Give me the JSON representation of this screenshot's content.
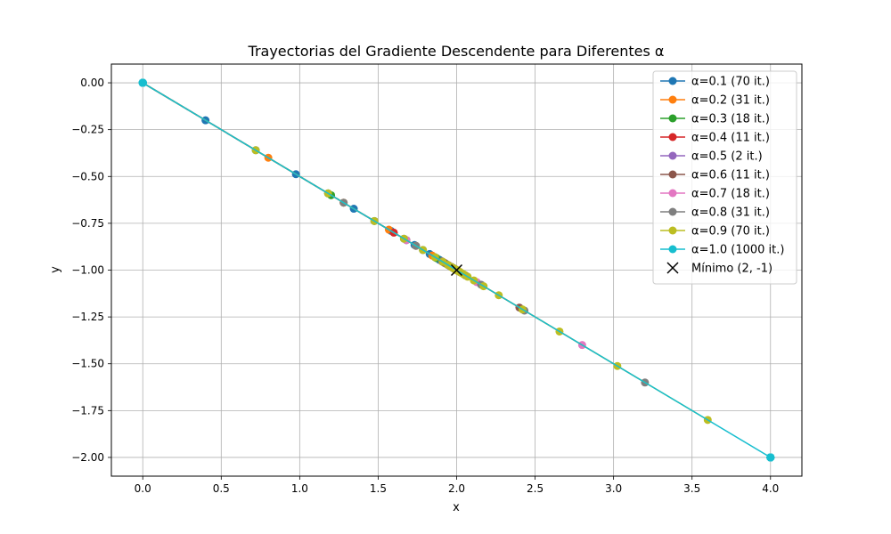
{
  "chart_data": {
    "type": "line",
    "title": "Trayectorias del Gradiente Descendente para Diferentes α",
    "xlabel": "x",
    "ylabel": "y",
    "xlim": [
      -0.2,
      4.2
    ],
    "ylim": [
      -2.1,
      0.1
    ],
    "xticks": [
      0.0,
      0.5,
      1.0,
      1.5,
      2.0,
      2.5,
      3.0,
      3.5,
      4.0
    ],
    "xtick_labels": [
      "0.0",
      "0.5",
      "1.0",
      "1.5",
      "2.0",
      "2.5",
      "3.0",
      "3.5",
      "4.0"
    ],
    "yticks": [
      0.0,
      -0.25,
      -0.5,
      -0.75,
      -1.0,
      -1.25,
      -1.5,
      -1.75,
      -2.0
    ],
    "ytick_labels": [
      "0.00",
      "−0.25",
      "−0.50",
      "−0.75",
      "−1.00",
      "−1.25",
      "−1.50",
      "−1.75",
      "−2.00"
    ],
    "grid": true,
    "legend_position": "top-right",
    "series": [
      {
        "name": "α=0.1 (70 it.)",
        "color": "#1f77b4",
        "alpha": 0.1,
        "iterations": 70
      },
      {
        "name": "α=0.2 (31 it.)",
        "color": "#ff7f0e",
        "alpha": 0.2,
        "iterations": 31
      },
      {
        "name": "α=0.3 (18 it.)",
        "color": "#2ca02c",
        "alpha": 0.3,
        "iterations": 18
      },
      {
        "name": "α=0.4 (11 it.)",
        "color": "#d62728",
        "alpha": 0.4,
        "iterations": 11
      },
      {
        "name": "α=0.5 (2 it.)",
        "color": "#9467bd",
        "alpha": 0.5,
        "iterations": 2
      },
      {
        "name": "α=0.6 (11 it.)",
        "color": "#8c564b",
        "alpha": 0.6,
        "iterations": 11
      },
      {
        "name": "α=0.7 (18 it.)",
        "color": "#e377c2",
        "alpha": 0.7,
        "iterations": 18
      },
      {
        "name": "α=0.8 (31 it.)",
        "color": "#7f7f7f",
        "alpha": 0.8,
        "iterations": 31
      },
      {
        "name": "α=0.9 (70 it.)",
        "color": "#bcbd22",
        "alpha": 0.9,
        "iterations": 70
      },
      {
        "name": "α=1.0 (1000 it.)",
        "color": "#17becf",
        "alpha": 1.0,
        "iterations": 1000
      }
    ],
    "minimum": {
      "name": "Mínimo (2, -1)",
      "x": 2,
      "y": -1,
      "color": "#000000"
    }
  }
}
